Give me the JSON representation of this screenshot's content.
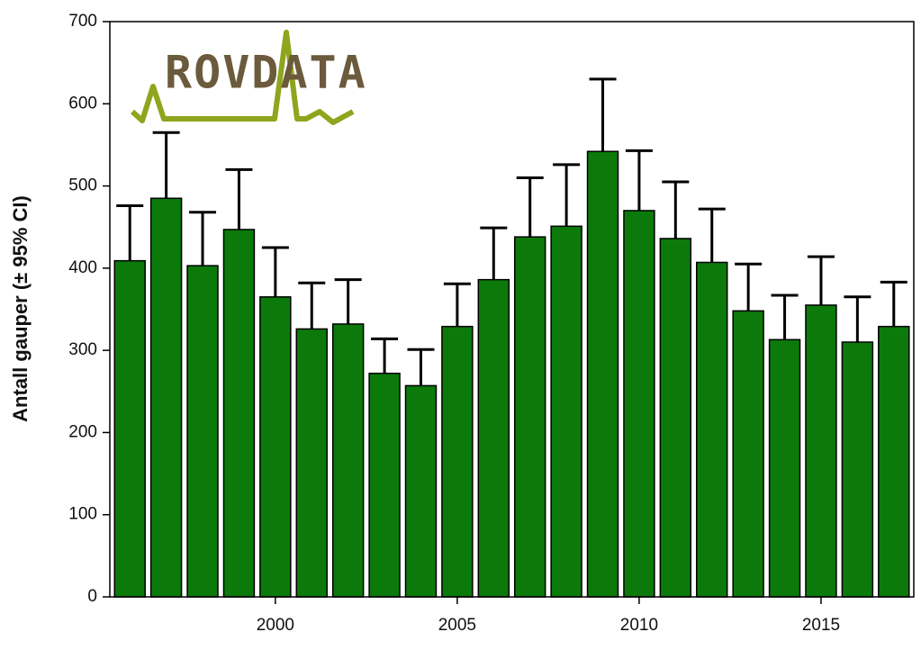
{
  "chart_data": {
    "type": "bar",
    "logo": "ROVDATA",
    "y_label": "Antall gauper (± 95% CI)",
    "x": [
      1996,
      1997,
      1998,
      1999,
      2000,
      2001,
      2002,
      2003,
      2004,
      2005,
      2006,
      2007,
      2008,
      2009,
      2010,
      2011,
      2012,
      2013,
      2014,
      2015,
      2016,
      2017
    ],
    "values": [
      409,
      485,
      403,
      447,
      365,
      326,
      332,
      272,
      257,
      329,
      386,
      438,
      451,
      542,
      470,
      436,
      407,
      348,
      313,
      355,
      310,
      329
    ],
    "errors": [
      67,
      80,
      65,
      73,
      60,
      56,
      54,
      42,
      44,
      52,
      63,
      72,
      75,
      88,
      73,
      69,
      65,
      57,
      54,
      59,
      55,
      54
    ],
    "color": "#0b7a0b",
    "xlim": [
      1995.45,
      2017.55
    ],
    "xticks": [
      2000,
      2005,
      2010,
      2015
    ],
    "ylim": [
      0,
      700
    ],
    "yticks": [
      0,
      100,
      200,
      300,
      400,
      500,
      600,
      700
    ]
  }
}
